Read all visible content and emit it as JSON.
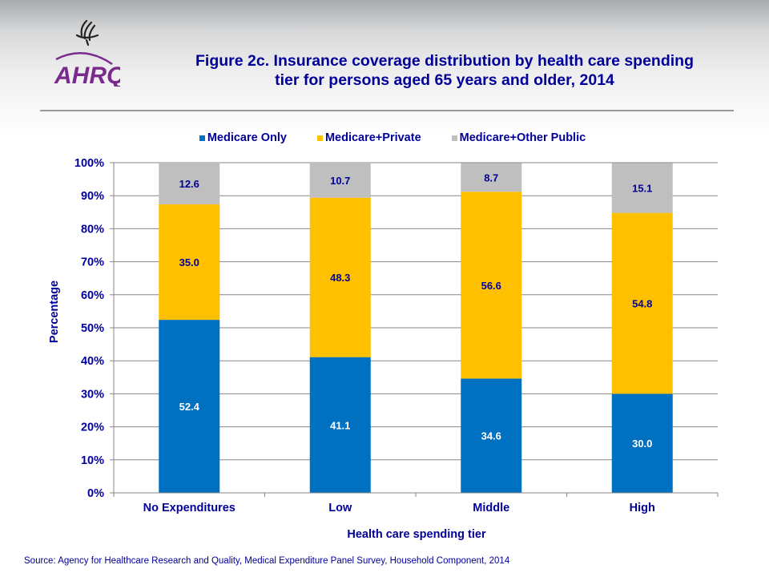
{
  "logo": {
    "name": "AHRQ",
    "emblem": "hhs-eagle-icon"
  },
  "header": {
    "title_line1": "Figure 2c. Insurance coverage distribution by health care spending",
    "title_line2": "tier for persons aged 65 years and older, 2014"
  },
  "colors": {
    "medicare_only": "#0070c0",
    "medicare_private": "#ffc000",
    "medicare_other_public": "#bfbfbf",
    "text": "#000099",
    "grid": "#868686"
  },
  "chart_data": {
    "type": "bar",
    "stacked": true,
    "title": "Figure 2c. Insurance coverage distribution by health care spending tier for persons aged 65 years and older, 2014",
    "xlabel": "Health care spending tier",
    "ylabel": "Percentage",
    "ylim": [
      0,
      100
    ],
    "yticks": [
      "0%",
      "10%",
      "20%",
      "30%",
      "40%",
      "50%",
      "60%",
      "70%",
      "80%",
      "90%",
      "100%"
    ],
    "grid": true,
    "legend_position": "top",
    "categories": [
      "No Expenditures",
      "Low",
      "Middle",
      "High"
    ],
    "series": [
      {
        "name": "Medicare Only",
        "color": "#0070c0",
        "label_color": "#ffffff",
        "values": [
          52.4,
          41.1,
          34.6,
          30.0
        ],
        "labels": [
          "52.4",
          "41.1",
          "34.6",
          "30.0"
        ]
      },
      {
        "name": "Medicare+Private",
        "color": "#ffc000",
        "label_color": "#000099",
        "values": [
          35.0,
          48.3,
          56.6,
          54.8
        ],
        "labels": [
          "35.0",
          "48.3",
          "56.6",
          "54.8"
        ]
      },
      {
        "name": "Medicare+Other Public",
        "color": "#bfbfbf",
        "label_color": "#000099",
        "values": [
          12.6,
          10.7,
          8.7,
          15.1
        ],
        "labels": [
          "12.6",
          "10.7",
          "8.7",
          "15.1"
        ]
      }
    ]
  },
  "source": "Source: Agency for Healthcare Research and Quality, Medical Expenditure Panel Survey,  Household Component, 2014"
}
